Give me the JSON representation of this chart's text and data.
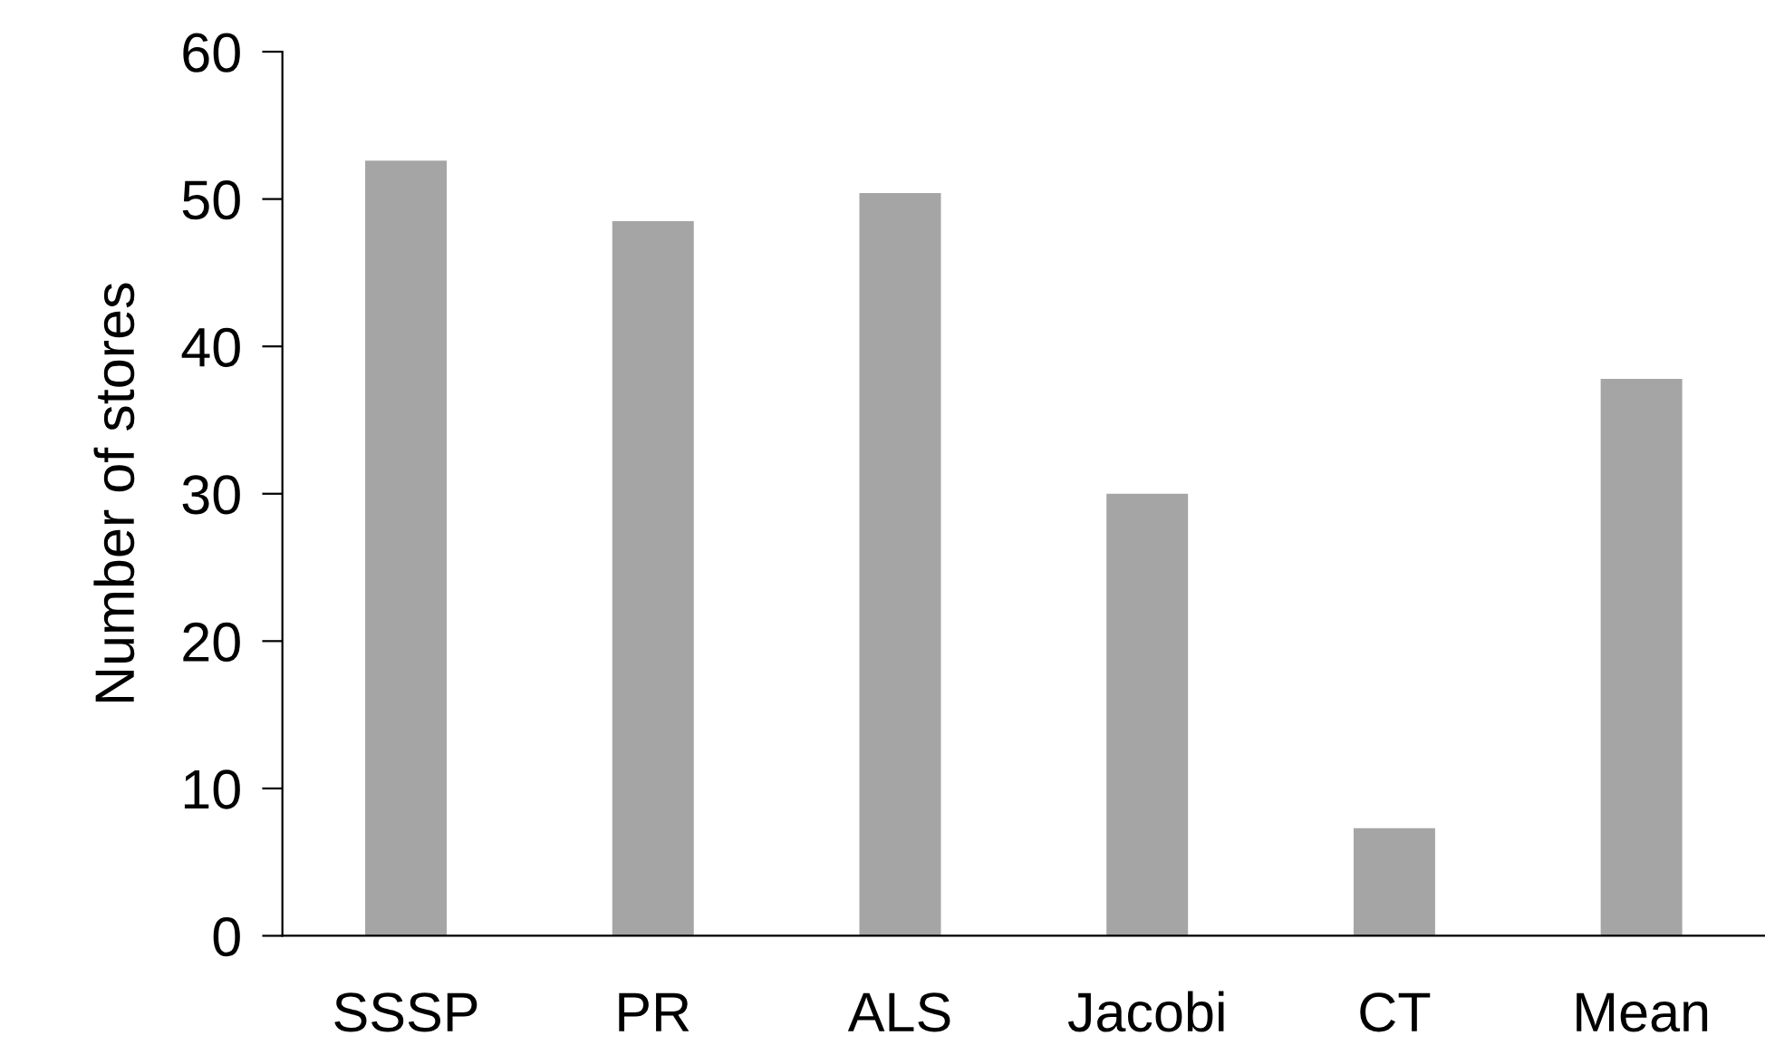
{
  "chart_data": {
    "type": "bar",
    "ylabel": "Number of stores",
    "categories": [
      "SSSP",
      "PR",
      "ALS",
      "Jacobi",
      "CT",
      "Mean"
    ],
    "values": [
      52.6,
      48.5,
      50.4,
      30.0,
      7.3,
      37.8
    ],
    "color": "#a5a5a5",
    "ylim": [
      0,
      60
    ],
    "yticks": [
      0,
      10,
      20,
      30,
      40,
      50,
      60
    ],
    "grid": false
  }
}
